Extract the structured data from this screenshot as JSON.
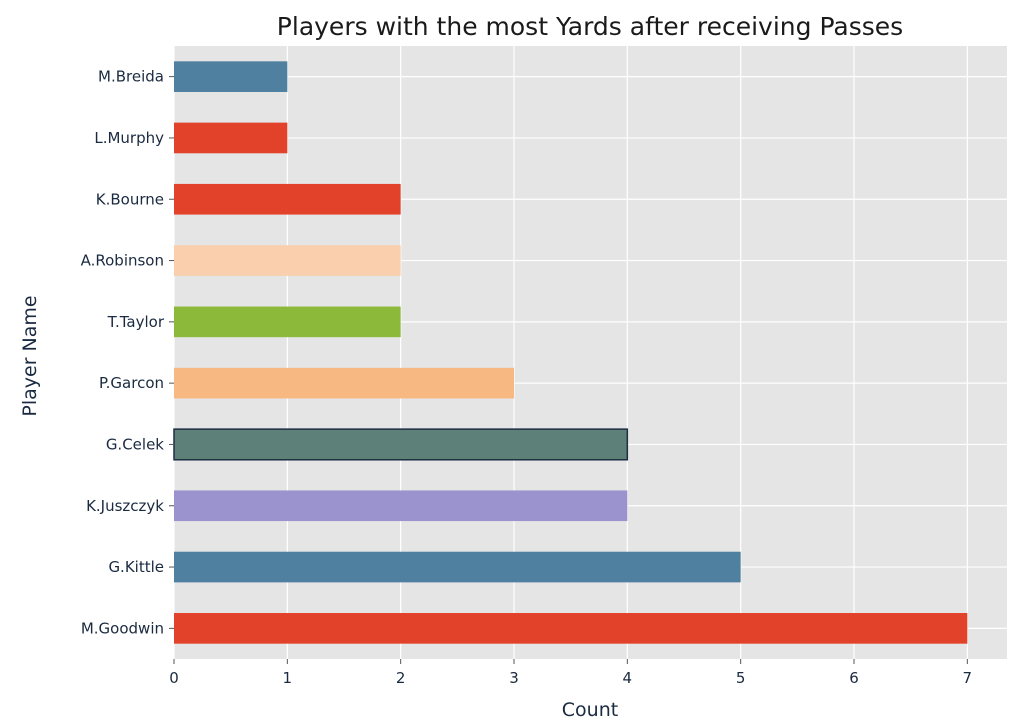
{
  "chart_data": {
    "type": "bar",
    "orientation": "horizontal",
    "title": "Players with the most Yards after receiving Passes",
    "xlabel": "Count",
    "ylabel": "Player Name",
    "xlim": [
      0,
      7.35
    ],
    "x_ticks": [
      0,
      1,
      2,
      3,
      4,
      5,
      6,
      7
    ],
    "grid": true,
    "categories": [
      "M.Breida",
      "L.Murphy",
      "K.Bourne",
      "A.Robinson",
      "T.Taylor",
      "P.Garcon",
      "G.Celek",
      "K.Juszczyk",
      "G.Kittle",
      "M.Goodwin"
    ],
    "values": [
      1,
      1,
      2,
      2,
      2,
      3,
      4,
      4,
      5,
      7
    ],
    "colors": [
      "#4f80a0",
      "#e2412a",
      "#e2412a",
      "#f9cfae",
      "#8db93a",
      "#f7b882",
      "#5d8078",
      "#9b93cd",
      "#4f80a0",
      "#e2412a"
    ],
    "plot_background": "#e5e5e5",
    "grid_color": "#ffffff"
  }
}
